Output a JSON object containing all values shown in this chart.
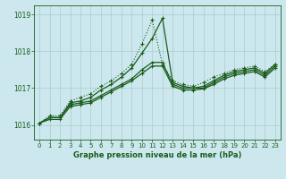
{
  "background_color": "#cce8ee",
  "grid_color": "#aacccc",
  "line_color": "#1a5c1a",
  "title": "Graphe pression niveau de la mer (hPa)",
  "xlim": [
    -0.5,
    23.5
  ],
  "ylim": [
    1015.6,
    1019.25
  ],
  "yticks": [
    1016,
    1017,
    1018,
    1019
  ],
  "xticks": [
    0,
    1,
    2,
    3,
    4,
    5,
    6,
    7,
    8,
    9,
    10,
    11,
    12,
    13,
    14,
    15,
    16,
    17,
    18,
    19,
    20,
    21,
    22,
    23
  ],
  "series": [
    {
      "x": [
        0,
        1,
        2,
        3,
        4,
        5,
        6,
        7,
        8,
        9,
        10,
        11,
        12,
        13,
        14,
        15,
        16,
        17,
        18,
        19,
        20,
        21,
        22,
        23
      ],
      "y": [
        1016.05,
        1016.25,
        1016.25,
        1016.65,
        1016.75,
        1016.85,
        1017.05,
        1017.2,
        1017.4,
        1017.65,
        1018.2,
        1018.85,
        1017.65,
        1017.2,
        1017.1,
        1017.05,
        1017.15,
        1017.3,
        1017.4,
        1017.5,
        1017.55,
        1017.6,
        1017.45,
        1017.65
      ],
      "style": "dotted",
      "marker": "+"
    },
    {
      "x": [
        0,
        1,
        2,
        3,
        4,
        5,
        6,
        7,
        8,
        9,
        10,
        11,
        12,
        13,
        14,
        15,
        16,
        17,
        18,
        19,
        20,
        21,
        22,
        23
      ],
      "y": [
        1016.05,
        1016.2,
        1016.2,
        1016.6,
        1016.65,
        1016.75,
        1016.95,
        1017.1,
        1017.3,
        1017.55,
        1017.95,
        1018.35,
        1018.9,
        1017.15,
        1017.05,
        1017.0,
        1017.05,
        1017.2,
        1017.35,
        1017.45,
        1017.5,
        1017.55,
        1017.4,
        1017.65
      ],
      "style": "solid",
      "marker": "+"
    },
    {
      "x": [
        0,
        1,
        2,
        3,
        4,
        5,
        6,
        7,
        8,
        9,
        10,
        11,
        12,
        13,
        14,
        15,
        16,
        17,
        18,
        19,
        20,
        21,
        22,
        23
      ],
      "y": [
        1016.05,
        1016.2,
        1016.2,
        1016.55,
        1016.6,
        1016.65,
        1016.8,
        1016.95,
        1017.1,
        1017.25,
        1017.5,
        1017.7,
        1017.7,
        1017.1,
        1017.0,
        1017.0,
        1017.0,
        1017.15,
        1017.3,
        1017.4,
        1017.45,
        1017.5,
        1017.35,
        1017.6
      ],
      "style": "solid",
      "marker": "+"
    },
    {
      "x": [
        0,
        1,
        2,
        3,
        4,
        5,
        6,
        7,
        8,
        9,
        10,
        11,
        12,
        13,
        14,
        15,
        16,
        17,
        18,
        19,
        20,
        21,
        22,
        23
      ],
      "y": [
        1016.05,
        1016.15,
        1016.15,
        1016.5,
        1016.55,
        1016.6,
        1016.75,
        1016.9,
        1017.05,
        1017.2,
        1017.4,
        1017.6,
        1017.6,
        1017.05,
        1016.95,
        1016.95,
        1016.98,
        1017.1,
        1017.25,
        1017.35,
        1017.4,
        1017.45,
        1017.3,
        1017.55
      ],
      "style": "solid",
      "marker": "+"
    }
  ]
}
